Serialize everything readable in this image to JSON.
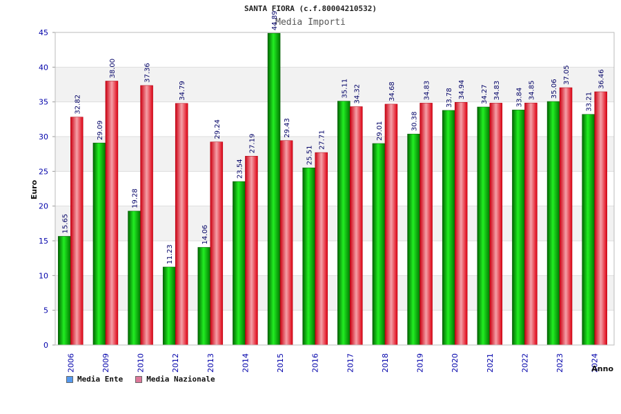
{
  "chart_data": {
    "type": "bar",
    "title": "SANTA FIORA (c.f.80004210532)",
    "subtitle": "Media Importi",
    "xlabel": "Anno",
    "ylabel": "Euro",
    "ylim": [
      0,
      45
    ],
    "yticks": [
      0,
      5,
      10,
      15,
      20,
      25,
      30,
      35,
      40,
      45
    ],
    "grid": true,
    "legend_position": "bottom-left",
    "categories": [
      "2006",
      "2009",
      "2010",
      "2012",
      "2013",
      "2014",
      "2015",
      "2016",
      "2017",
      "2018",
      "2019",
      "2020",
      "2021",
      "2022",
      "2023",
      "2024"
    ],
    "series": [
      {
        "name": "Media Ente",
        "color": "#00c000",
        "legend_color": "#5599ee",
        "values": [
          15.65,
          29.09,
          19.28,
          11.23,
          14.06,
          23.54,
          44.89,
          25.51,
          35.11,
          29.01,
          30.38,
          33.78,
          34.27,
          33.84,
          35.06,
          33.21
        ],
        "labels": [
          "15.65",
          "29.09",
          "19.28",
          "11.23",
          "14.06",
          "23.54",
          "44.89",
          "25.51",
          "35.11",
          "29.01",
          "30.38",
          "33.78",
          "34.27",
          "33.84",
          "35.06",
          "33.21"
        ]
      },
      {
        "name": "Media Nazionale",
        "color": "#ee2233",
        "legend_color": "#dd7799",
        "values": [
          32.82,
          38.0,
          37.36,
          34.79,
          29.24,
          27.19,
          29.43,
          27.71,
          34.32,
          34.68,
          34.83,
          34.94,
          34.83,
          34.85,
          37.05,
          36.46
        ],
        "labels": [
          "32.82",
          "38.00",
          "37.36",
          "34.79",
          "29.24",
          "27.19",
          "29.43",
          "27.71",
          "34.32",
          "34.68",
          "34.83",
          "34.94",
          "34.83",
          "34.85",
          "37.05",
          "36.46"
        ]
      }
    ]
  }
}
